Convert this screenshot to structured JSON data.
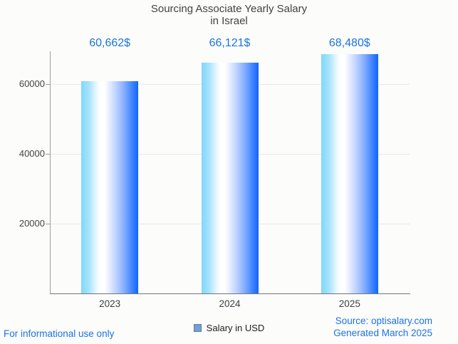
{
  "title": {
    "line1": "Sourcing Associate Yearly Salary",
    "line2": "in Israel"
  },
  "chart_data": {
    "type": "bar",
    "title": "Sourcing Associate Yearly Salary in Israel",
    "categories": [
      "2023",
      "2024",
      "2025"
    ],
    "series": [
      {
        "name": "Salary in USD",
        "values": [
          60662,
          66121,
          68480
        ],
        "value_labels": [
          "60,662$",
          "66,121$",
          "68,480$"
        ]
      }
    ],
    "xlabel": "",
    "ylabel": "",
    "ylim": [
      0,
      69300
    ],
    "yticks": [
      20000,
      40000,
      60000
    ],
    "grid": true,
    "legend_position": "bottom",
    "bar_gradient": [
      "#7ed7fb",
      "#ffffff",
      "#1264fa"
    ],
    "value_label_color": "#1a73e8"
  },
  "legend": {
    "label": "Salary in USD",
    "marker_color": "#6aa2e2"
  },
  "footer": {
    "left": "For informational use only",
    "source": "Source: optisalary.com",
    "generated": "Generated March 2025",
    "link_color": "#1a73e8"
  }
}
